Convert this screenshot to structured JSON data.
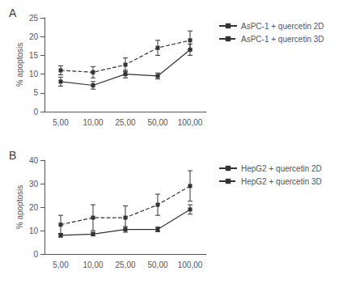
{
  "chart_data": [
    {
      "type": "line",
      "title": "A",
      "y_label": "% apoptosis",
      "categories": [
        "5,00",
        "10,00",
        "25,00",
        "50,00",
        "100,00"
      ],
      "series": [
        {
          "name": "AsPC-1 + quercetin 2D",
          "color": "#333333",
          "marker": "square",
          "line_style": "solid",
          "values": [
            8.0,
            7.0,
            10.0,
            9.5,
            16.5
          ],
          "yerr": [
            1.2,
            1.0,
            1.0,
            0.8,
            1.5
          ]
        },
        {
          "name": "AsPC-1 + quercetin 3D",
          "color": "#333333",
          "marker": "square",
          "line_style": "dashed",
          "values": [
            11.0,
            10.5,
            12.5,
            17.0,
            19.0
          ],
          "yerr": [
            1.2,
            1.5,
            1.8,
            2.0,
            2.5
          ]
        }
      ],
      "ylim": [
        0,
        25
      ],
      "yticks": [
        0,
        5,
        10,
        15,
        20,
        25
      ],
      "grid": false,
      "legend": "right"
    },
    {
      "type": "line",
      "title": "B",
      "y_label": "% apoptosis",
      "categories": [
        "5,00",
        "10,00",
        "25,00",
        "50,00",
        "100,00"
      ],
      "series": [
        {
          "name": "HepG2 + quercetin 2D",
          "color": "#333333",
          "marker": "square",
          "line_style": "solid",
          "values": [
            8.0,
            8.5,
            10.5,
            10.5,
            19.0
          ],
          "yerr": [
            0.8,
            0.8,
            1.2,
            1.0,
            2.0
          ]
        },
        {
          "name": "HepG2 + quercetin 3D",
          "color": "#333333",
          "marker": "square",
          "line_style": "dashed",
          "values": [
            12.5,
            15.5,
            15.5,
            21.0,
            29.0
          ],
          "yerr": [
            4.0,
            5.5,
            5.0,
            4.5,
            6.5
          ]
        }
      ],
      "ylim": [
        0,
        40
      ],
      "yticks": [
        0,
        10,
        20,
        30,
        40
      ],
      "grid": false,
      "legend": "right"
    }
  ]
}
